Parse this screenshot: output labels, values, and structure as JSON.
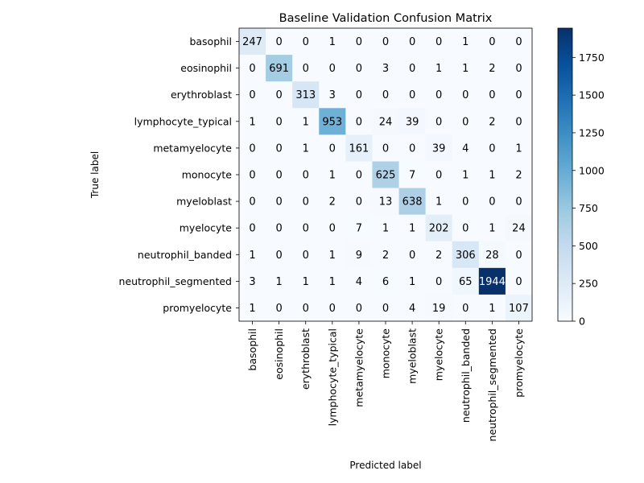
{
  "chart_data": {
    "type": "heatmap",
    "title": "Baseline Validation Confusion Matrix",
    "xlabel": "Predicted label",
    "ylabel": "True label",
    "x_categories": [
      "basophil",
      "eosinophil",
      "erythroblast",
      "lymphocyte_typical",
      "metamyelocyte",
      "monocyte",
      "myeloblast",
      "myelocyte",
      "neutrophil_banded",
      "neutrophil_segmented",
      "promyelocyte"
    ],
    "y_categories": [
      "basophil",
      "eosinophil",
      "erythroblast",
      "lymphocyte_typical",
      "metamyelocyte",
      "monocyte",
      "myeloblast",
      "myelocyte",
      "neutrophil_banded",
      "neutrophil_segmented",
      "promyelocyte"
    ],
    "values": [
      [
        247,
        0,
        0,
        1,
        0,
        0,
        0,
        0,
        1,
        0,
        0
      ],
      [
        0,
        691,
        0,
        0,
        0,
        3,
        0,
        1,
        1,
        2,
        0
      ],
      [
        0,
        0,
        313,
        3,
        0,
        0,
        0,
        0,
        0,
        0,
        0
      ],
      [
        1,
        0,
        1,
        953,
        0,
        24,
        39,
        0,
        0,
        2,
        0
      ],
      [
        0,
        0,
        1,
        0,
        161,
        0,
        0,
        39,
        4,
        0,
        1
      ],
      [
        0,
        0,
        0,
        1,
        0,
        625,
        7,
        0,
        1,
        1,
        2
      ],
      [
        0,
        0,
        0,
        2,
        0,
        13,
        638,
        1,
        0,
        0,
        0
      ],
      [
        0,
        0,
        0,
        0,
        7,
        1,
        1,
        202,
        0,
        1,
        24
      ],
      [
        1,
        0,
        0,
        1,
        9,
        2,
        0,
        2,
        306,
        28,
        0
      ],
      [
        3,
        1,
        1,
        1,
        4,
        6,
        1,
        0,
        65,
        1944,
        0
      ],
      [
        1,
        0,
        0,
        0,
        0,
        0,
        4,
        19,
        0,
        1,
        107
      ]
    ],
    "colorscale": "Blues",
    "colorbar": {
      "min": 0,
      "max": 1944,
      "ticks": [
        0,
        250,
        500,
        750,
        1000,
        1250,
        1500,
        1750
      ]
    },
    "text_color_threshold": 972,
    "text_color_light": "#ffffff",
    "text_color_dark": "#000000"
  }
}
